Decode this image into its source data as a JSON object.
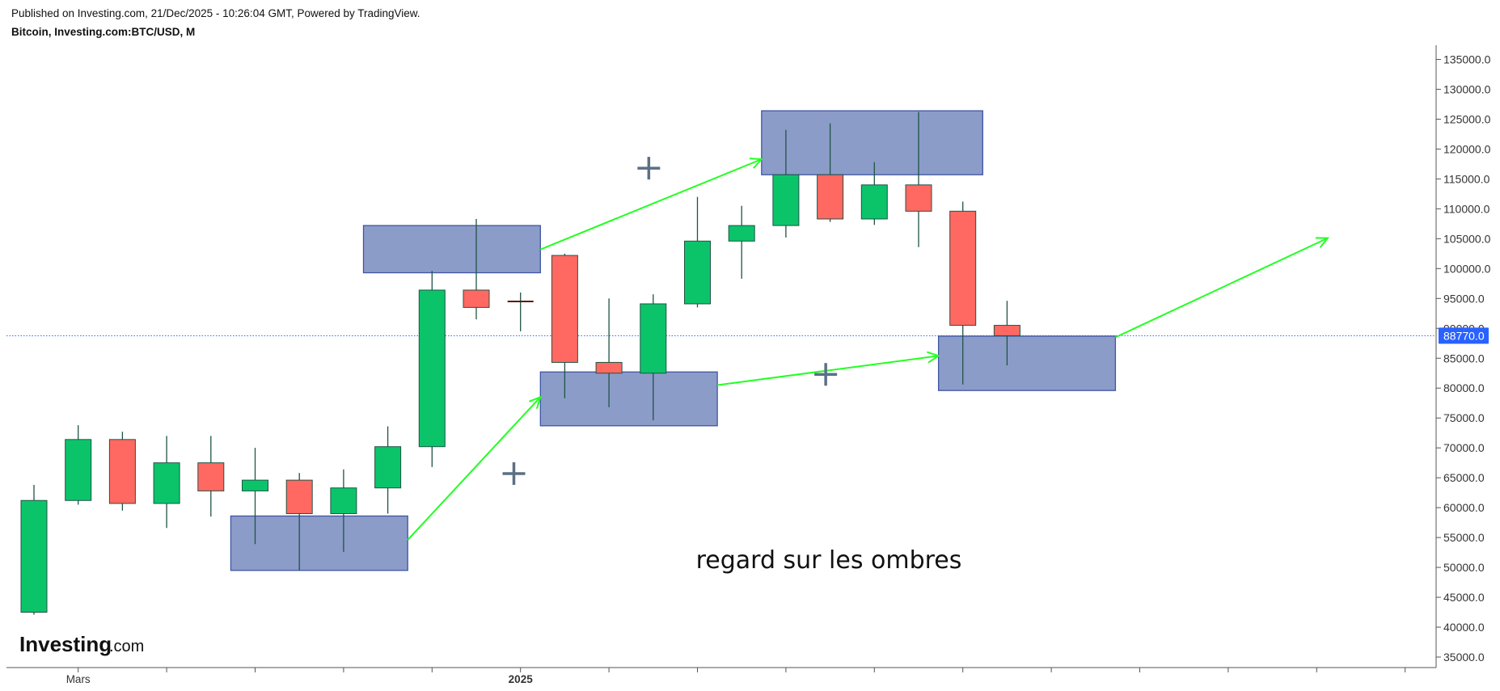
{
  "header": {
    "published": "Published on Investing.com, 21/Dec/2025 - 10:26:04 GMT, Powered by TradingView.",
    "symbol": "Bitcoin, Investing.com:BTC/USD, M"
  },
  "logo": {
    "main": "Investing",
    "sub": ".com"
  },
  "annotation": "regard sur les ombres",
  "chart_data": {
    "type": "candlestick",
    "title": "Bitcoin, Investing.com:BTC/USD, M",
    "interval": "M",
    "ylim": [
      33000,
      138000
    ],
    "y_ticks": [
      "35000.0",
      "40000.0",
      "45000.0",
      "50000.0",
      "55000.0",
      "60000.0",
      "65000.0",
      "70000.0",
      "75000.0",
      "80000.0",
      "85000.0",
      "90000.0",
      "95000.0",
      "100000.0",
      "105000.0",
      "110000.0",
      "115000.0",
      "120000.0",
      "125000.0",
      "130000.0",
      "135000.0"
    ],
    "x_labels": [
      {
        "index": 1,
        "label": "Mars"
      },
      {
        "index": 11,
        "label": "2025"
      }
    ],
    "current_price": {
      "value": 88770.0,
      "label": "88770.0",
      "color": "#2962ff"
    },
    "candles": [
      {
        "o": 42500,
        "h": 63800,
        "l": 42100,
        "c": 61200
      },
      {
        "o": 61200,
        "h": 73800,
        "l": 60500,
        "c": 71400
      },
      {
        "o": 71400,
        "h": 72700,
        "l": 59500,
        "c": 60700
      },
      {
        "o": 60700,
        "h": 72000,
        "l": 56600,
        "c": 67500
      },
      {
        "o": 67500,
        "h": 72000,
        "l": 58500,
        "c": 62800
      },
      {
        "o": 62800,
        "h": 70000,
        "l": 53900,
        "c": 64600
      },
      {
        "o": 64600,
        "h": 65800,
        "l": 49500,
        "c": 59000
      },
      {
        "o": 59000,
        "h": 66400,
        "l": 52600,
        "c": 63300
      },
      {
        "o": 63300,
        "h": 73600,
        "l": 59000,
        "c": 70200
      },
      {
        "o": 70200,
        "h": 99600,
        "l": 66800,
        "c": 96400
      },
      {
        "o": 96400,
        "h": 108300,
        "l": 91500,
        "c": 93500
      },
      {
        "o": 94500,
        "h": 96000,
        "l": 89500,
        "c": 94300
      },
      {
        "o": 102200,
        "h": 102500,
        "l": 78300,
        "c": 84300
      },
      {
        "o": 84300,
        "h": 95000,
        "l": 76800,
        "c": 82500
      },
      {
        "o": 82500,
        "h": 95700,
        "l": 74600,
        "c": 94100
      },
      {
        "o": 94100,
        "h": 112000,
        "l": 93500,
        "c": 104600
      },
      {
        "o": 104600,
        "h": 110500,
        "l": 98300,
        "c": 107200
      },
      {
        "o": 107200,
        "h": 123200,
        "l": 105200,
        "c": 115700
      },
      {
        "o": 115700,
        "h": 124300,
        "l": 107800,
        "c": 108300
      },
      {
        "o": 108300,
        "h": 117800,
        "l": 107300,
        "c": 114000
      },
      {
        "o": 114000,
        "h": 126200,
        "l": 103600,
        "c": 109600
      },
      {
        "o": 109600,
        "h": 111200,
        "l": 80600,
        "c": 90500
      },
      {
        "o": 90500,
        "h": 94600,
        "l": 83800,
        "c": 88770
      }
    ],
    "zones": [
      {
        "from": 4.45,
        "to": 8.45,
        "low": 49500,
        "high": 58600
      },
      {
        "from": 7.45,
        "to": 11.45,
        "low": 99300,
        "high": 107200
      },
      {
        "from": 11.45,
        "to": 15.45,
        "low": 73700,
        "high": 82700
      },
      {
        "from": 16.45,
        "to": 21.45,
        "low": 115700,
        "high": 126400
      },
      {
        "from": 20.45,
        "to": 24.45,
        "low": 79600,
        "high": 88700
      }
    ],
    "arrows": [
      {
        "x1": 8.45,
        "y1": 54600,
        "x2": 11.45,
        "y2": 78500
      },
      {
        "x1": 11.45,
        "y1": 103200,
        "x2": 16.45,
        "y2": 118300
      },
      {
        "x1": 15.45,
        "y1": 80500,
        "x2": 20.45,
        "y2": 85400
      },
      {
        "x1": 24.45,
        "y1": 88500,
        "x2": 29.25,
        "y2": 105100
      }
    ],
    "plus_marks": [
      {
        "x": 13.9,
        "y": 116800
      },
      {
        "x": 10.85,
        "y": 65700
      },
      {
        "x": 17.9,
        "y": 82300
      }
    ],
    "colors": {
      "up": "#0bc46a",
      "down": "#ff6962",
      "wick": "#1f5445",
      "zone_fill": "#8c9cc8",
      "zone_border": "#3e55a5",
      "arrow": "#22ff22",
      "plus": "#5b7085"
    }
  }
}
